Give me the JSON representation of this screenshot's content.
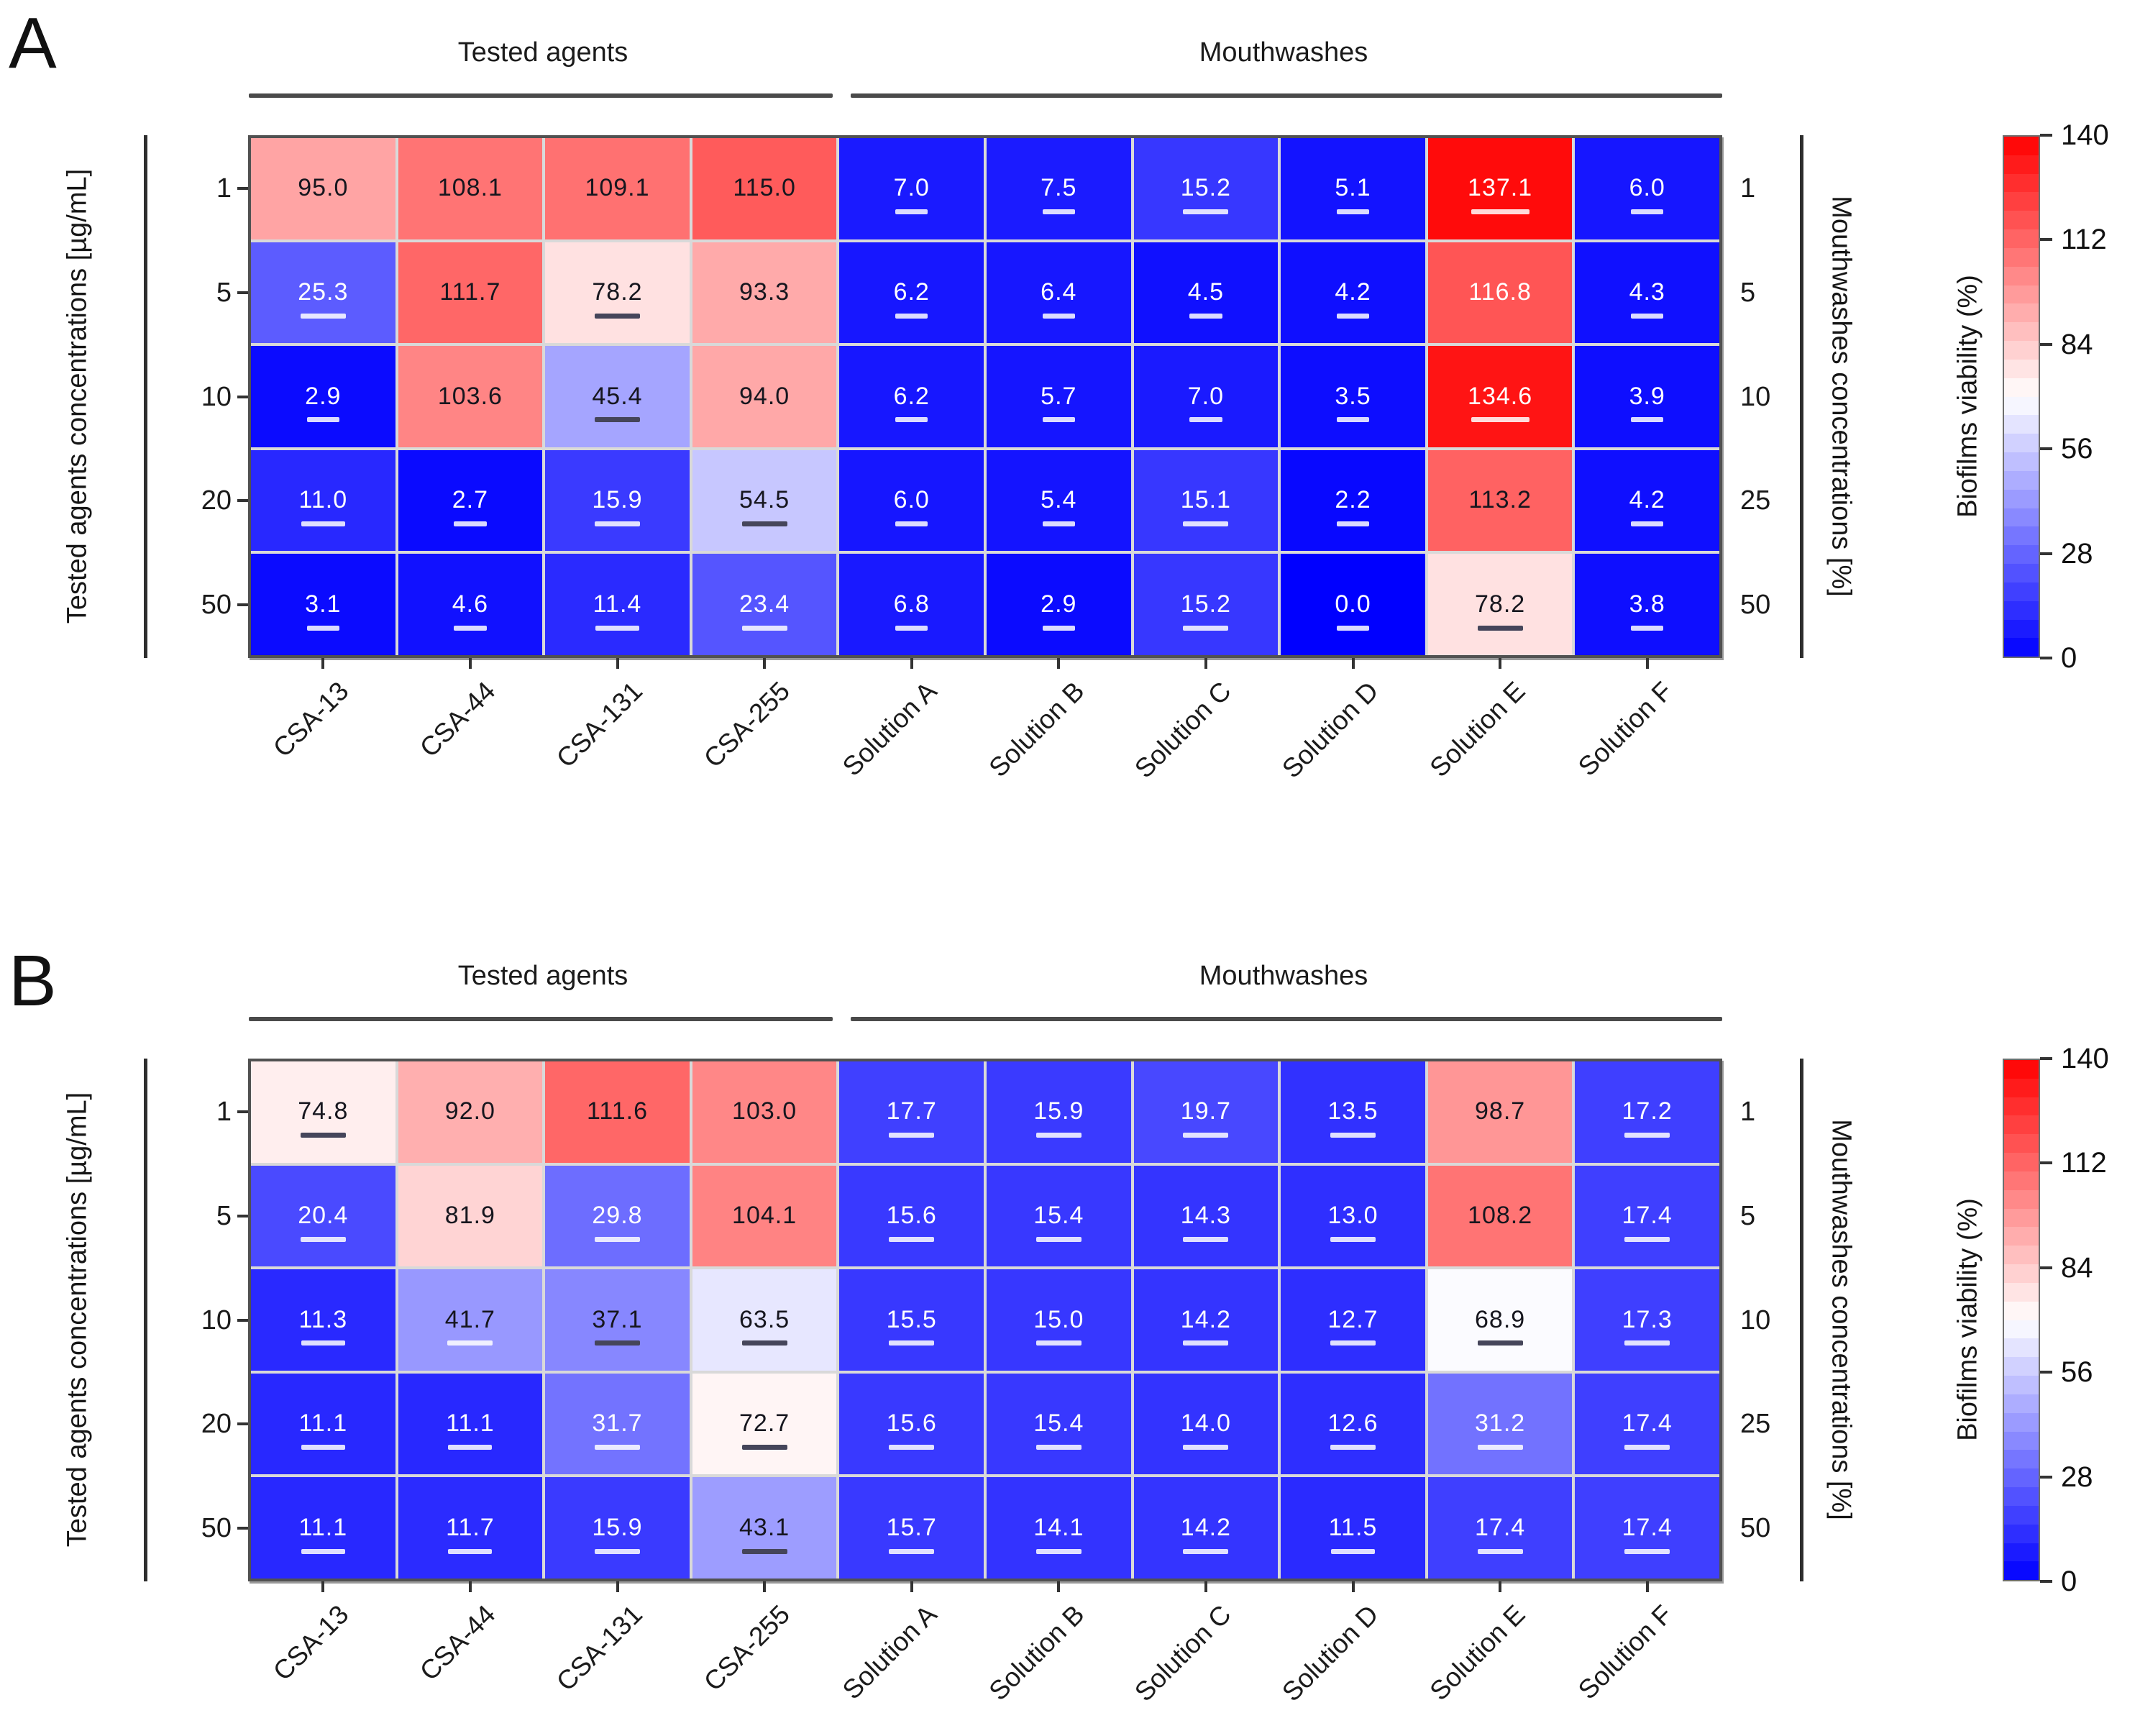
{
  "figure_title": "",
  "colors": {
    "cmap_low": "#0000ff",
    "cmap_mid": "#ffffff",
    "cmap_high": "#ff0000",
    "underline_light": "rgba(255,255,255,0.85)",
    "underline_dark": "#45455a",
    "spine": "#2e2e2e",
    "header_line": "#4a4a4a",
    "cell_text_dark": "#16161e",
    "cell_text_light": "#ffffff"
  },
  "style_rules": {
    "cell_text_white_below": 35,
    "cell_text_white_above": 115
  },
  "colorbar": {
    "title": "Biofilms viability (%)",
    "min": 0,
    "max": 140,
    "tick_values": [
      140,
      112,
      84,
      56,
      28,
      0
    ],
    "tick_labels": [
      "140",
      "112",
      "84",
      "56",
      "28",
      "0"
    ],
    "segments": 28,
    "colormap": "blue-white-red"
  },
  "chart_data": [
    {
      "type": "heatmap",
      "panel_label": "A",
      "x_groups": [
        {
          "label": "Tested agents",
          "span": 4
        },
        {
          "label": "Mouthwashes",
          "span": 6
        }
      ],
      "x_categories": [
        "CSA-13",
        "CSA-44",
        "CSA-131",
        "CSA-255",
        "Solution A",
        "Solution B",
        "Solution C",
        "Solution D",
        "Solution E",
        "Solution F"
      ],
      "y_left_label": "Tested agents concentrations [µg/mL]",
      "y_left_ticks": [
        "1",
        "5",
        "10",
        "20",
        "50"
      ],
      "y_right_label": "Mouthwashes concentrations [%]",
      "y_right_ticks": [
        "1",
        "5",
        "10",
        "25",
        "50"
      ],
      "values": [
        [
          95.0,
          108.1,
          109.1,
          115.0,
          7.0,
          7.5,
          15.2,
          5.1,
          137.1,
          6.0
        ],
        [
          25.3,
          111.7,
          78.2,
          93.3,
          6.2,
          6.4,
          4.5,
          4.2,
          116.8,
          4.3
        ],
        [
          2.9,
          103.6,
          45.4,
          94.0,
          6.2,
          5.7,
          7.0,
          3.5,
          134.6,
          3.9
        ],
        [
          11.0,
          2.7,
          15.9,
          54.5,
          6.0,
          5.4,
          15.1,
          2.2,
          113.2,
          4.2
        ],
        [
          3.1,
          4.6,
          11.4,
          23.4,
          6.8,
          2.9,
          15.2,
          0.0,
          78.2,
          3.8
        ]
      ],
      "underline": [
        [
          "",
          "",
          "",
          "",
          "white",
          "white",
          "white",
          "white",
          "white",
          "white"
        ],
        [
          "white",
          "",
          "dark",
          "",
          "white",
          "white",
          "white",
          "white",
          "",
          "white"
        ],
        [
          "white",
          "",
          "dark",
          "",
          "white",
          "white",
          "white",
          "white",
          "white",
          "white"
        ],
        [
          "white",
          "white",
          "white",
          "dark",
          "white",
          "white",
          "white",
          "white",
          "",
          "white"
        ],
        [
          "white",
          "white",
          "white",
          "white",
          "white",
          "white",
          "white",
          "white",
          "dark",
          "white"
        ]
      ]
    },
    {
      "type": "heatmap",
      "panel_label": "B",
      "x_groups": [
        {
          "label": "Tested agents",
          "span": 4
        },
        {
          "label": "Mouthwashes",
          "span": 6
        }
      ],
      "x_categories": [
        "CSA-13",
        "CSA-44",
        "CSA-131",
        "CSA-255",
        "Solution A",
        "Solution B",
        "Solution C",
        "Solution D",
        "Solution E",
        "Solution F"
      ],
      "y_left_label": "Tested agents concentrations [µg/mL]",
      "y_left_ticks": [
        "1",
        "5",
        "10",
        "20",
        "50"
      ],
      "y_right_label": "Mouthwashes concentrations [%]",
      "y_right_ticks": [
        "1",
        "5",
        "10",
        "25",
        "50"
      ],
      "values": [
        [
          74.8,
          92.0,
          111.6,
          103.0,
          17.7,
          15.9,
          19.7,
          13.5,
          98.7,
          17.2
        ],
        [
          20.4,
          81.9,
          29.8,
          104.1,
          15.6,
          15.4,
          14.3,
          13.0,
          108.2,
          17.4
        ],
        [
          11.3,
          41.7,
          37.1,
          63.5,
          15.5,
          15.0,
          14.2,
          12.7,
          68.9,
          17.3
        ],
        [
          11.1,
          11.1,
          31.7,
          72.7,
          15.6,
          15.4,
          14.0,
          12.6,
          31.2,
          17.4
        ],
        [
          11.1,
          11.7,
          15.9,
          43.1,
          15.7,
          14.1,
          14.2,
          11.5,
          17.4,
          17.4
        ]
      ],
      "underline": [
        [
          "dark",
          "",
          "",
          "",
          "white",
          "white",
          "white",
          "white",
          "",
          "white"
        ],
        [
          "white",
          "",
          "white",
          "",
          "white",
          "white",
          "white",
          "white",
          "",
          "white"
        ],
        [
          "white",
          "white",
          "dark",
          "dark",
          "white",
          "white",
          "white",
          "white",
          "dark",
          "white"
        ],
        [
          "white",
          "white",
          "white",
          "dark",
          "white",
          "white",
          "white",
          "white",
          "white",
          "white"
        ],
        [
          "white",
          "white",
          "white",
          "dark",
          "white",
          "white",
          "white",
          "white",
          "white",
          "white"
        ]
      ]
    }
  ]
}
